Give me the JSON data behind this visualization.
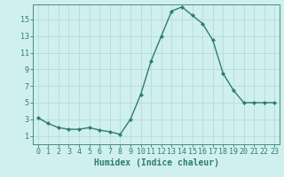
{
  "x": [
    0,
    1,
    2,
    3,
    4,
    5,
    6,
    7,
    8,
    9,
    10,
    11,
    12,
    13,
    14,
    15,
    16,
    17,
    18,
    19,
    20,
    21,
    22,
    23
  ],
  "y": [
    3.2,
    2.5,
    2.0,
    1.8,
    1.8,
    2.0,
    1.7,
    1.5,
    1.2,
    3.0,
    6.0,
    10.0,
    13.0,
    16.0,
    16.5,
    15.5,
    14.5,
    12.5,
    8.5,
    6.5,
    5.0,
    5.0,
    5.0,
    5.0
  ],
  "xlabel": "Humidex (Indice chaleur)",
  "line_color": "#2e7d6e",
  "marker_color": "#2e7d6e",
  "bg_color": "#cff0ee",
  "grid_color": "#b8dbd8",
  "axis_color": "#4a8a80",
  "tick_color": "#2e7d6e",
  "ylim": [
    0,
    16.8
  ],
  "xlim": [
    -0.5,
    23.5
  ],
  "yticks": [
    1,
    3,
    5,
    7,
    9,
    11,
    13,
    15
  ],
  "xticks": [
    0,
    1,
    2,
    3,
    4,
    5,
    6,
    7,
    8,
    9,
    10,
    11,
    12,
    13,
    14,
    15,
    16,
    17,
    18,
    19,
    20,
    21,
    22,
    23
  ],
  "xtick_labels": [
    "0",
    "1",
    "2",
    "3",
    "4",
    "5",
    "6",
    "7",
    "8",
    "9",
    "10",
    "11",
    "12",
    "13",
    "14",
    "15",
    "16",
    "17",
    "18",
    "19",
    "20",
    "21",
    "22",
    "23"
  ],
  "xlabel_fontsize": 7,
  "tick_fontsize": 6
}
